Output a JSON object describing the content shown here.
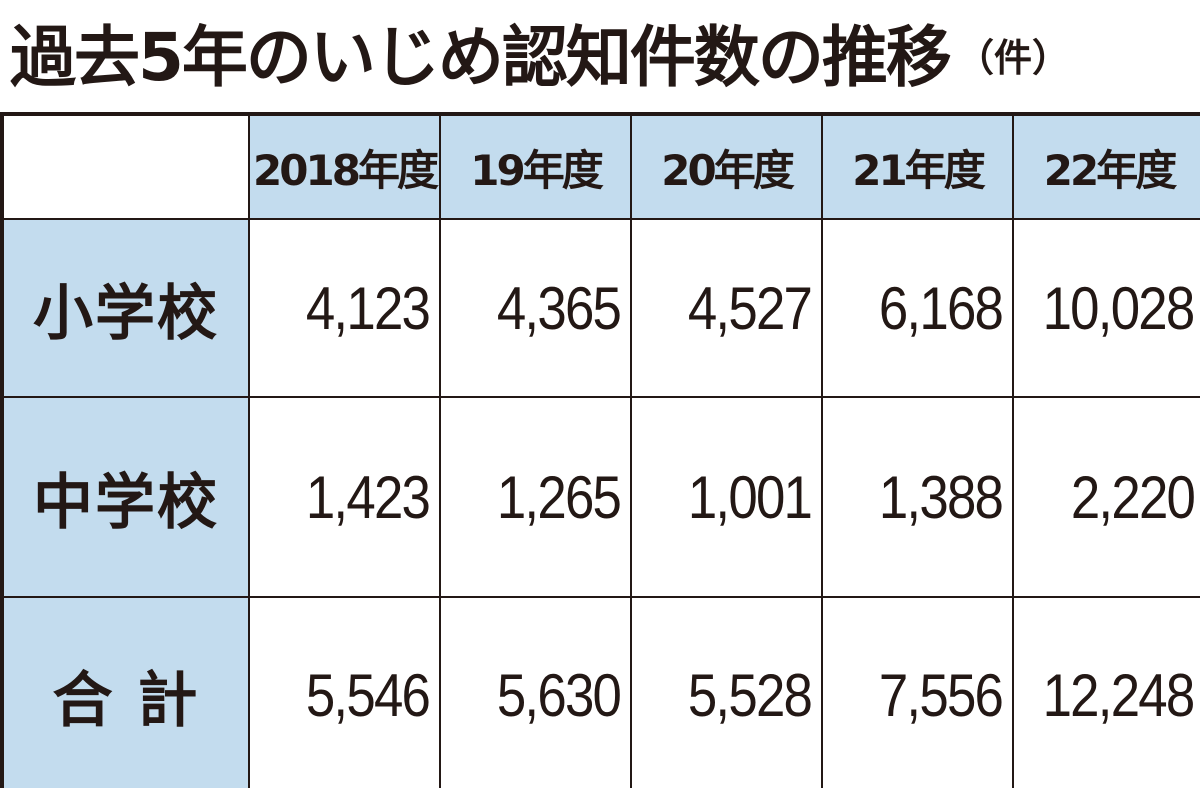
{
  "title": "過去5年のいじめ認知件数の推移",
  "unit": "（件）",
  "chart_data": {
    "type": "table",
    "title": "過去5年のいじめ認知件数の推移",
    "unit": "（件）",
    "columns": [
      "2018年度",
      "19年度",
      "20年度",
      "21年度",
      "22年度"
    ],
    "rows": [
      {
        "label": "小学校",
        "values": [
          "4,123",
          "4,365",
          "4,527",
          "6,168",
          "10,028"
        ]
      },
      {
        "label": "中学校",
        "values": [
          "1,423",
          "1,265",
          "1,001",
          "1,388",
          "2,220"
        ]
      },
      {
        "label": "合 計",
        "values": [
          "5,546",
          "5,630",
          "5,528",
          "7,556",
          "12,248"
        ]
      }
    ]
  },
  "colors": {
    "header_fill": "#c3dcee",
    "border": "#231815",
    "text": "#231815"
  }
}
